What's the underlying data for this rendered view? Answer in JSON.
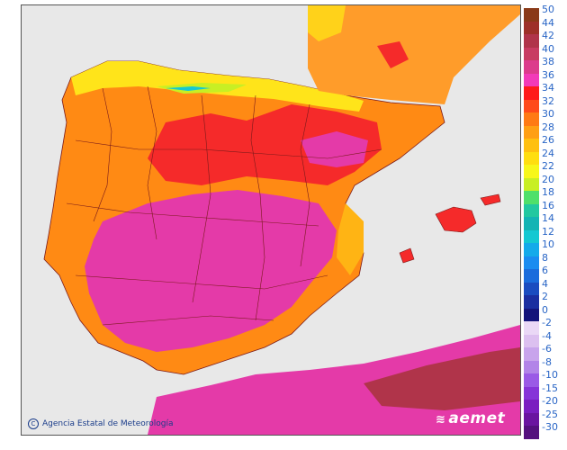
{
  "credit": {
    "symbol": "C",
    "text": "Agencia Estatal de Meteorología"
  },
  "logo": {
    "text": "aemet"
  },
  "legend": {
    "entries": [
      {
        "label": "50",
        "color": "#8a3a18"
      },
      {
        "label": "44",
        "color": "#9e3028"
      },
      {
        "label": "42",
        "color": "#b0344a"
      },
      {
        "label": "40",
        "color": "#c83c62"
      },
      {
        "label": "38",
        "color": "#dc3b8c"
      },
      {
        "label": "36",
        "color": "#f23ab8"
      },
      {
        "label": "34",
        "color": "#ff1a1a"
      },
      {
        "label": "32",
        "color": "#ff4a1a"
      },
      {
        "label": "30",
        "color": "#ff7a14"
      },
      {
        "label": "28",
        "color": "#ff9f14"
      },
      {
        "label": "26",
        "color": "#ffc010"
      },
      {
        "label": "24",
        "color": "#ffde10"
      },
      {
        "label": "22",
        "color": "#f7f71a"
      },
      {
        "label": "20",
        "color": "#c8ef24"
      },
      {
        "label": "18",
        "color": "#4fe06a"
      },
      {
        "label": "16",
        "color": "#22c8a0"
      },
      {
        "label": "14",
        "color": "#14b4b4"
      },
      {
        "label": "12",
        "color": "#14c8d2"
      },
      {
        "label": "10",
        "color": "#14aaea"
      },
      {
        "label": "8",
        "color": "#1a8cf0"
      },
      {
        "label": "6",
        "color": "#1a6cdc"
      },
      {
        "label": "4",
        "color": "#1a4cc0"
      },
      {
        "label": "2",
        "color": "#1a2ea0"
      },
      {
        "label": "0",
        "color": "#14147a"
      },
      {
        "label": "-2",
        "color": "#ead8f6"
      },
      {
        "label": "-4",
        "color": "#dcc0f0"
      },
      {
        "label": "-6",
        "color": "#c8a4ec"
      },
      {
        "label": "-8",
        "color": "#b284e8"
      },
      {
        "label": "-10",
        "color": "#9a5ae6"
      },
      {
        "label": "-15",
        "color": "#8634d8"
      },
      {
        "label": "-20",
        "color": "#7a1ec0"
      },
      {
        "label": "-25",
        "color": "#6a14a0"
      },
      {
        "label": "-30",
        "color": "#54107e"
      }
    ]
  },
  "map": {
    "sea_color": "#e8e8e8",
    "hot_core_color": "#e43aa8",
    "very_hot_color": "#f52a2a",
    "warm_color": "#ff8a14",
    "mild_color": "#ffd21a",
    "cool_color": "#fff27a",
    "france_color": "#ff9c2a",
    "africa_color": "#c83c62",
    "outline_color": "#7a1a1a"
  }
}
